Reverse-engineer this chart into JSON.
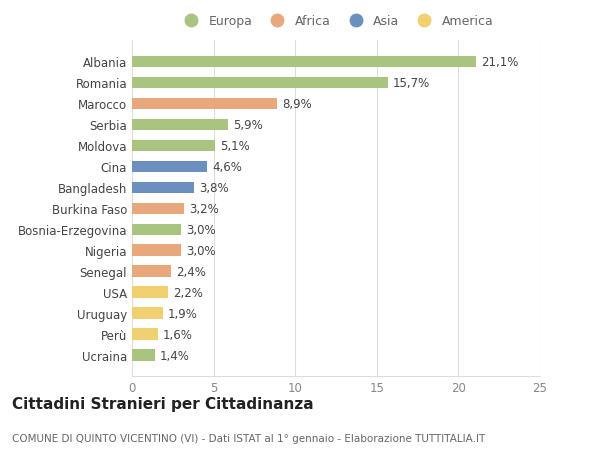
{
  "categories": [
    "Albania",
    "Romania",
    "Marocco",
    "Serbia",
    "Moldova",
    "Cina",
    "Bangladesh",
    "Burkina Faso",
    "Bosnia-Erzegovina",
    "Nigeria",
    "Senegal",
    "USA",
    "Uruguay",
    "Perù",
    "Ucraina"
  ],
  "values": [
    21.1,
    15.7,
    8.9,
    5.9,
    5.1,
    4.6,
    3.8,
    3.2,
    3.0,
    3.0,
    2.4,
    2.2,
    1.9,
    1.6,
    1.4
  ],
  "labels": [
    "21,1%",
    "15,7%",
    "8,9%",
    "5,9%",
    "5,1%",
    "4,6%",
    "3,8%",
    "3,2%",
    "3,0%",
    "3,0%",
    "2,4%",
    "2,2%",
    "1,9%",
    "1,6%",
    "1,4%"
  ],
  "continent": [
    "Europa",
    "Europa",
    "Africa",
    "Europa",
    "Europa",
    "Asia",
    "Asia",
    "Africa",
    "Europa",
    "Africa",
    "Africa",
    "America",
    "America",
    "America",
    "Europa"
  ],
  "colors": {
    "Europa": "#a8c47e",
    "Africa": "#e8a87c",
    "Asia": "#6b8fbf",
    "America": "#f0d070"
  },
  "legend_order": [
    "Europa",
    "Africa",
    "Asia",
    "America"
  ],
  "xlim": [
    0,
    25
  ],
  "xticks": [
    0,
    5,
    10,
    15,
    20,
    25
  ],
  "title": "Cittadini Stranieri per Cittadinanza",
  "subtitle": "COMUNE DI QUINTO VICENTINO (VI) - Dati ISTAT al 1° gennaio - Elaborazione TUTTITALIA.IT",
  "bg_color": "#ffffff",
  "grid_color": "#dddddd",
  "bar_height": 0.55,
  "label_fontsize": 8.5,
  "axis_label_fontsize": 8.5,
  "title_fontsize": 11,
  "subtitle_fontsize": 7.5
}
